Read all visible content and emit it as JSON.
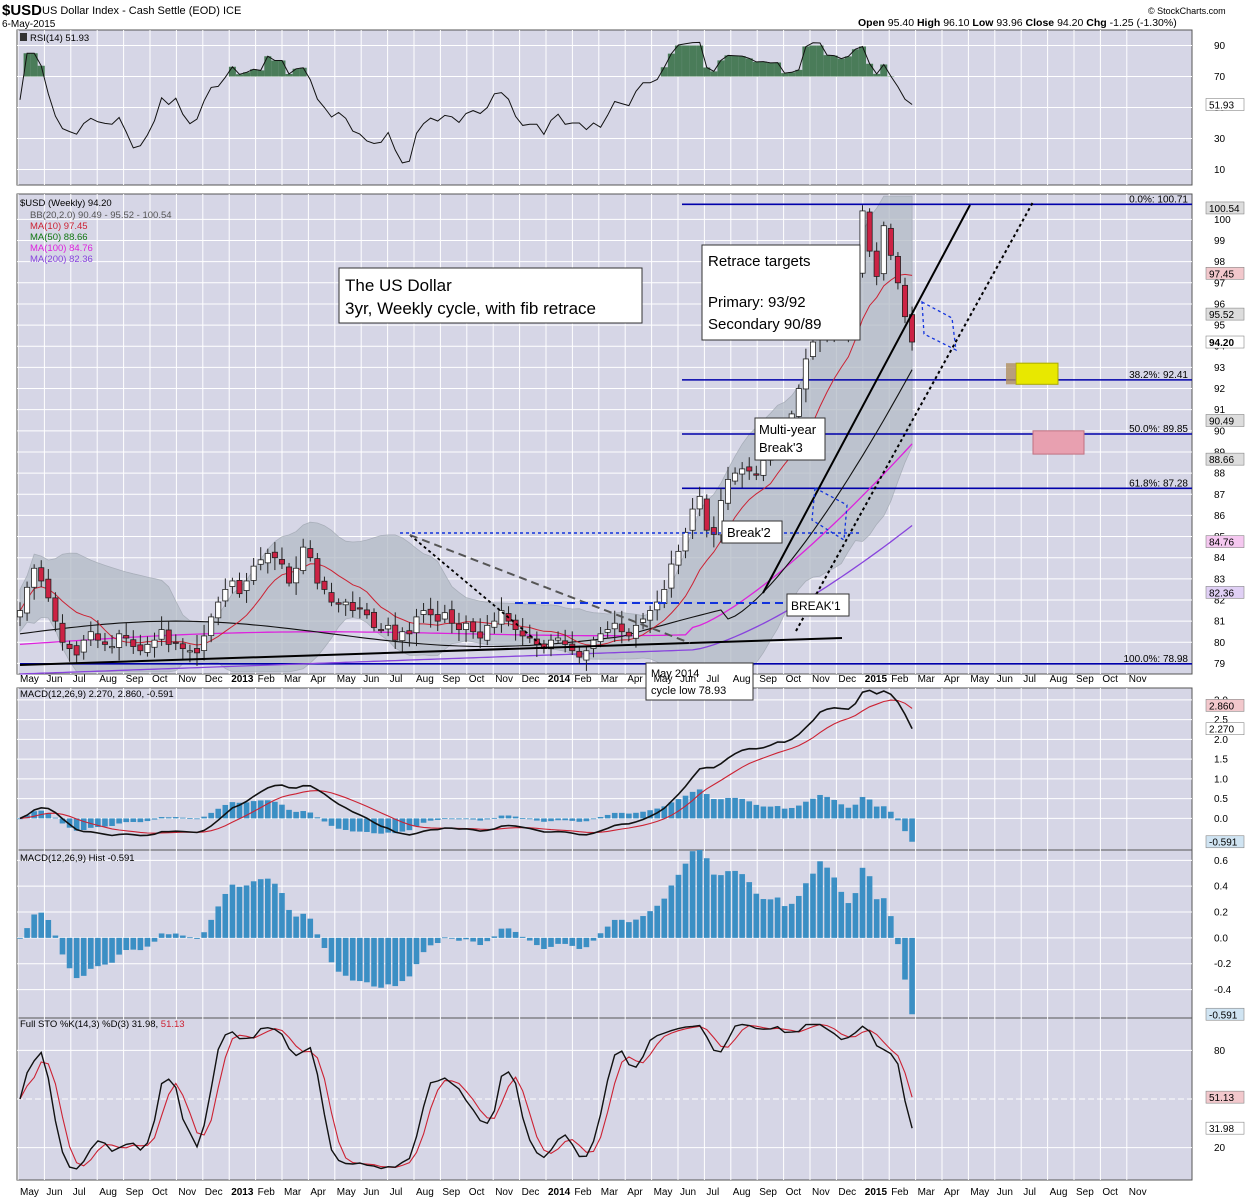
{
  "header": {
    "ticker": "$USD",
    "name": "US Dollar Index - Cash Settle (EOD)",
    "exchange": "ICE",
    "date": "6-May-2015",
    "open_label": "Open",
    "open": "95.40",
    "high_label": "High",
    "high": "96.10",
    "low_label": "Low",
    "low": "93.96",
    "close_label": "Close",
    "close": "94.20",
    "chg_label": "Chg",
    "chg": "-1.25 (-1.30%)",
    "watermark": "© StockCharts.com"
  },
  "colors": {
    "panel_bg": "#d6d6e6",
    "up_candle": "#ffffff",
    "down_candle": "#cc2244",
    "ma10": "#cc2233",
    "ma50": "#117711",
    "ma100": "#dd22dd",
    "ma200": "#8844dd",
    "fib_line": "#0000aa",
    "bb_fill": "#b4bcc6",
    "macd_hist": "#3b8fc4",
    "rsi_fill": "#4a7c59",
    "primary_box": "#e8e800",
    "secondary_box": "#e8a0b0"
  },
  "legend": {
    "rsi": "RSI(14) 51.93",
    "price": "$USD (Weekly) 94.20",
    "bb": "BB(20,2.0) 90.49 - 95.52 - 100.54",
    "ma10": "MA(10) 97.45",
    "ma50": "MA(50) 88.66",
    "ma100": "MA(100) 84.76",
    "ma200": "MA(200) 82.36",
    "macd": "MACD(12,26,9) 2.270, 2.860, -0.591",
    "hist": "MACD(12,26,9) Hist -0.591",
    "sto_prefix": "Full STO %K(14,3) %D(3) 31.98,",
    "sto_d": "51.13"
  },
  "annotations": {
    "title_line1": "The US Dollar",
    "title_line2": "3yr, Weekly cycle, with fib retrace",
    "targets_line1": "Retrace targets",
    "targets_line2": "Primary: 93/92",
    "targets_line3": "Secondary 90/89",
    "multiyear_line1": "Multi-year",
    "multiyear_line2": "Break'3",
    "break2": "Break'2",
    "break1": "BREAK'1",
    "cycle_low_line1": "May 2014",
    "cycle_low_line2": "cycle low 78.93"
  },
  "chart_data": {
    "type": "candlestick",
    "timeframe": "Weekly",
    "x_axis_labels": [
      "May",
      "Jun",
      "Jul",
      "Aug",
      "Sep",
      "Oct",
      "Nov",
      "Dec",
      "2013",
      "Feb",
      "Mar",
      "Apr",
      "May",
      "Jun",
      "Jul",
      "Aug",
      "Sep",
      "Oct",
      "Nov",
      "Dec",
      "2014",
      "Feb",
      "Mar",
      "Apr",
      "May",
      "Jun",
      "Jul",
      "Aug",
      "Sep",
      "Oct",
      "Nov",
      "Dec",
      "2015",
      "Feb",
      "Mar",
      "Apr",
      "May",
      "Jun",
      "Jul",
      "Aug",
      "Sep",
      "Oct",
      "Nov"
    ],
    "price_panel": {
      "ylim": [
        78.5,
        101.2
      ],
      "y_ticks": [
        79,
        80,
        81,
        82,
        83,
        84,
        85,
        86,
        87,
        88,
        89,
        90,
        91,
        92,
        93,
        94,
        95,
        96,
        97,
        98,
        99,
        100
      ],
      "right_labels": {
        "bb_upper": "100.54",
        "ma10": "97.45",
        "bb_mid": "95.52",
        "close": "94.20",
        "bb_lower": "90.49",
        "ma50": "88.66",
        "ma100": "84.76",
        "ma200": "82.36"
      },
      "fib_levels": [
        {
          "label": "0.0%: 100.71",
          "value": 100.71
        },
        {
          "label": "38.2%: 92.41",
          "value": 92.41
        },
        {
          "label": "50.0%: 89.85",
          "value": 89.85
        },
        {
          "label": "61.8%: 87.28",
          "value": 87.28
        },
        {
          "label": "100.0%: 78.98",
          "value": 78.98
        }
      ],
      "primary_target_zone": [
        92.2,
        93.2
      ],
      "secondary_target_zone": [
        88.9,
        90.0
      ],
      "close_points": [
        81.5,
        82.6,
        83.5,
        82.9,
        82.1,
        81.0,
        80.0,
        79.7,
        79.4,
        80.1,
        80.5,
        80.1,
        79.9,
        79.8,
        80.4,
        80.2,
        79.8,
        79.6,
        79.9,
        80.1,
        80.6,
        79.9,
        80.0,
        79.7,
        79.6,
        79.5,
        80.3,
        81.2,
        81.9,
        82.5,
        82.9,
        82.3,
        82.9,
        83.6,
        83.9,
        84.2,
        84.0,
        83.7,
        82.8,
        83.5,
        84.5,
        84.0,
        82.8,
        82.5,
        81.9,
        81.8,
        81.9,
        81.5,
        81.6,
        81.3,
        80.7,
        80.6,
        80.8,
        80.1,
        80.5,
        80.4,
        81.2,
        81.5,
        81.3,
        81.0,
        81.4,
        80.9,
        80.6,
        80.9,
        80.5,
        80.2,
        80.8,
        81.0,
        81.5,
        81.0,
        80.6,
        80.3,
        80.2,
        79.9,
        79.7,
        80.1,
        80.2,
        79.9,
        79.6,
        79.3,
        79.6,
        80.1,
        80.4,
        80.6,
        80.9,
        80.5,
        80.3,
        80.8,
        81.1,
        81.5,
        81.9,
        82.5,
        83.7,
        84.3,
        85.2,
        86.3,
        86.9,
        85.3,
        85.1,
        86.7,
        87.7,
        88.0,
        88.2,
        88.1,
        87.9,
        88.6,
        89.4,
        90.1,
        89.5,
        90.8,
        92.0,
        93.4,
        94.2,
        95.6,
        94.8,
        94.9,
        94.7,
        95.1,
        97.6,
        100.4,
        98.5,
        97.3,
        99.7,
        98.3,
        97.0,
        95.4,
        94.2
      ]
    },
    "rsi": {
      "value": 51.93,
      "overbought": 70,
      "oversold": 30,
      "y_ticks": [
        10,
        30,
        50,
        70,
        90
      ]
    },
    "macd": {
      "macd": 2.27,
      "signal": 2.86,
      "hist": -0.591,
      "y_ticks": [
        0.0,
        0.5,
        1.0,
        1.5,
        2.0,
        2.5,
        3.0
      ],
      "right_labels": [
        "2.860",
        "2.270",
        "-0.591"
      ]
    },
    "macd_hist": {
      "value": -0.591,
      "y_ticks": [
        -0.4,
        -0.2,
        0.0,
        0.2,
        0.4,
        0.6
      ],
      "right_label": "-0.591"
    },
    "stochastic": {
      "k": 31.98,
      "d": 51.13,
      "levels": [
        20,
        80
      ],
      "y_ticks": [
        20,
        80
      ],
      "right_labels": [
        "51.13",
        "31.98"
      ]
    }
  }
}
